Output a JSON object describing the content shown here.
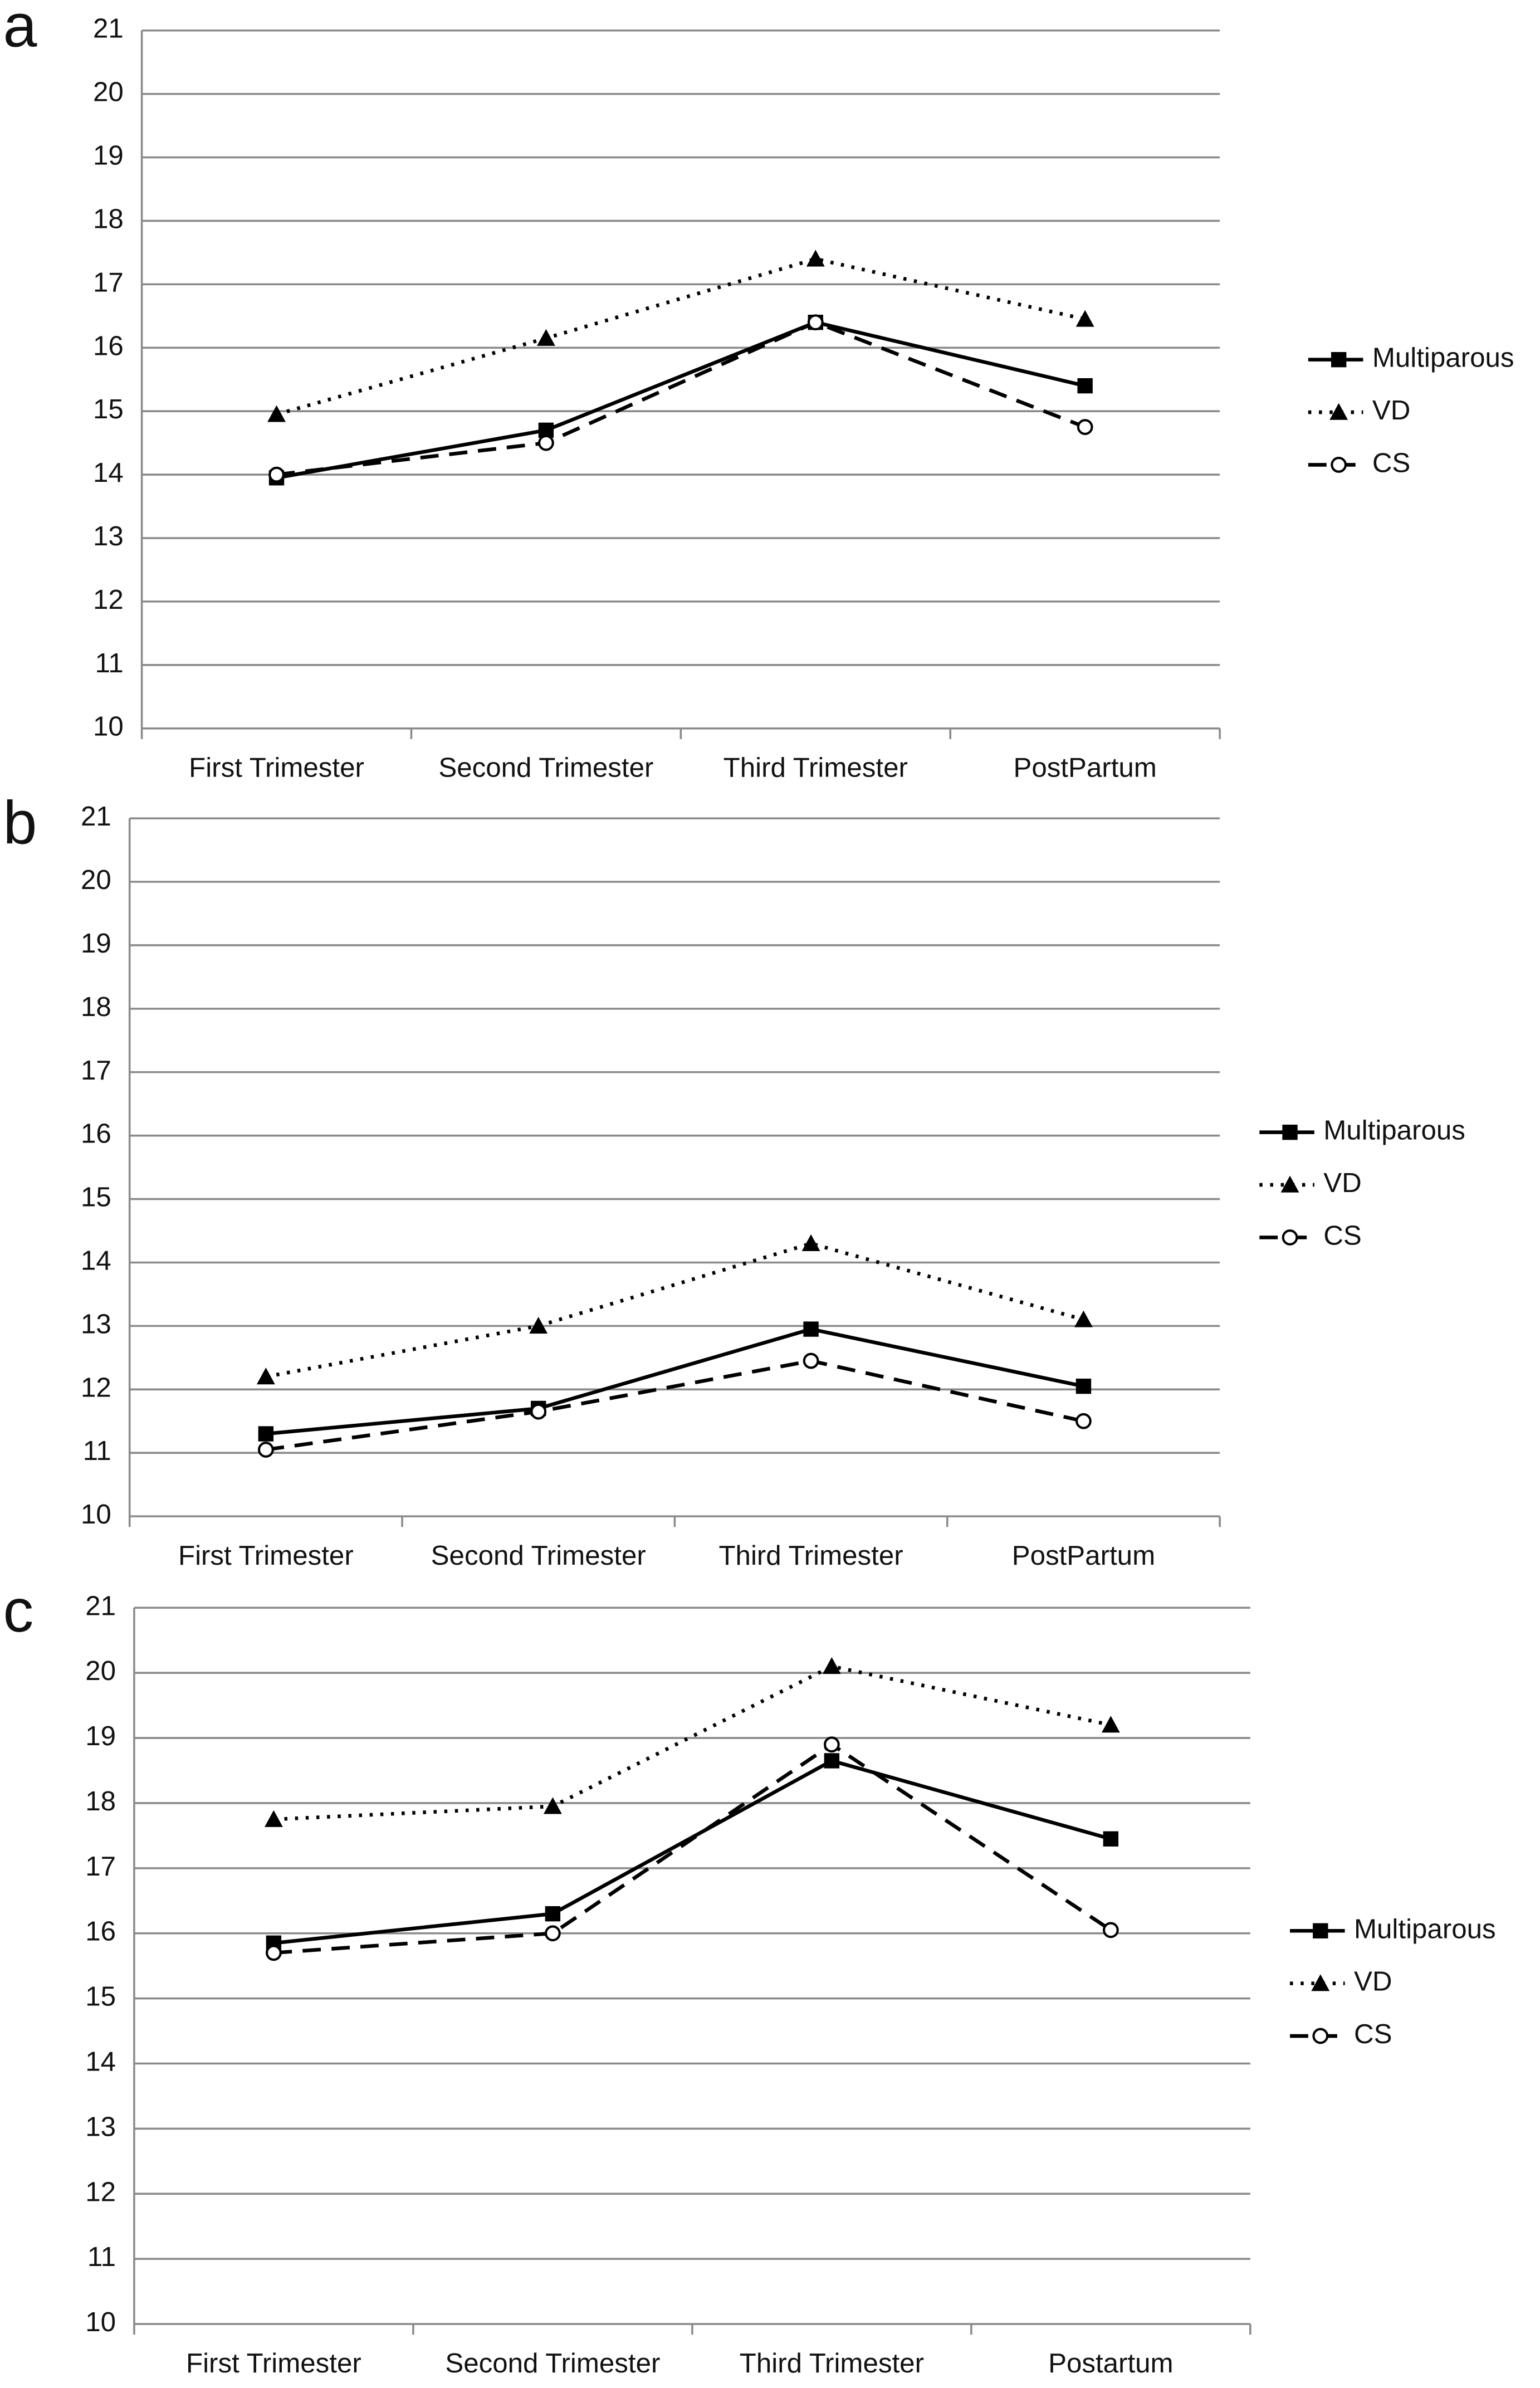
{
  "chart_data": [
    {
      "type": "line",
      "label": "a",
      "categories": [
        "First Trimester",
        "Second Trimester",
        "Third Trimester",
        "PostPartum"
      ],
      "series": [
        {
          "name": "Multiparous",
          "color": "#000000",
          "line_style": "solid",
          "marker": "square",
          "values": [
            13.95,
            14.7,
            16.4,
            15.4
          ]
        },
        {
          "name": "VD",
          "color": "#000000",
          "line_style": "dotted",
          "marker": "triangle",
          "values": [
            14.95,
            16.15,
            17.4,
            16.45
          ]
        },
        {
          "name": "CS",
          "color": "#000000",
          "line_style": "dashed",
          "marker": "circle",
          "values": [
            14.0,
            14.5,
            16.4,
            14.75
          ]
        }
      ],
      "ylim": [
        10,
        21
      ],
      "yticks": [
        10,
        11,
        12,
        13,
        14,
        15,
        16,
        17,
        18,
        19,
        20,
        21
      ],
      "grid": true,
      "legend": "right"
    },
    {
      "type": "line",
      "label": "b",
      "categories": [
        "First Trimester",
        "Second Trimester",
        "Third Trimester",
        "PostPartum"
      ],
      "series": [
        {
          "name": "Multiparous",
          "color": "#000000",
          "line_style": "solid",
          "marker": "square",
          "values": [
            11.3,
            11.7,
            12.95,
            12.05
          ]
        },
        {
          "name": "VD",
          "color": "#000000",
          "line_style": "dotted",
          "marker": "triangle",
          "values": [
            12.2,
            13.0,
            14.3,
            13.1
          ]
        },
        {
          "name": "CS",
          "color": "#000000",
          "line_style": "dashed",
          "marker": "circle",
          "values": [
            11.05,
            11.65,
            12.45,
            11.5
          ]
        }
      ],
      "ylim": [
        10,
        21
      ],
      "yticks": [
        10,
        11,
        12,
        13,
        14,
        15,
        16,
        17,
        18,
        19,
        20,
        21
      ],
      "grid": true,
      "legend": "right"
    },
    {
      "type": "line",
      "label": "c",
      "categories": [
        "First Trimester",
        "Second Trimester",
        "Third Trimester",
        "Postartum"
      ],
      "series": [
        {
          "name": "Multiparous",
          "color": "#000000",
          "line_style": "solid",
          "marker": "square",
          "values": [
            15.85,
            16.3,
            18.65,
            17.45
          ]
        },
        {
          "name": "VD",
          "color": "#000000",
          "line_style": "dotted",
          "marker": "triangle",
          "values": [
            17.75,
            17.95,
            20.1,
            19.2
          ]
        },
        {
          "name": "CS",
          "color": "#000000",
          "line_style": "dashed",
          "marker": "circle",
          "values": [
            15.7,
            16.0,
            18.9,
            16.05
          ]
        }
      ],
      "ylim": [
        10,
        21
      ],
      "yticks": [
        10,
        11,
        12,
        13,
        14,
        15,
        16,
        17,
        18,
        19,
        20,
        21
      ],
      "grid": true,
      "legend": "right"
    }
  ]
}
